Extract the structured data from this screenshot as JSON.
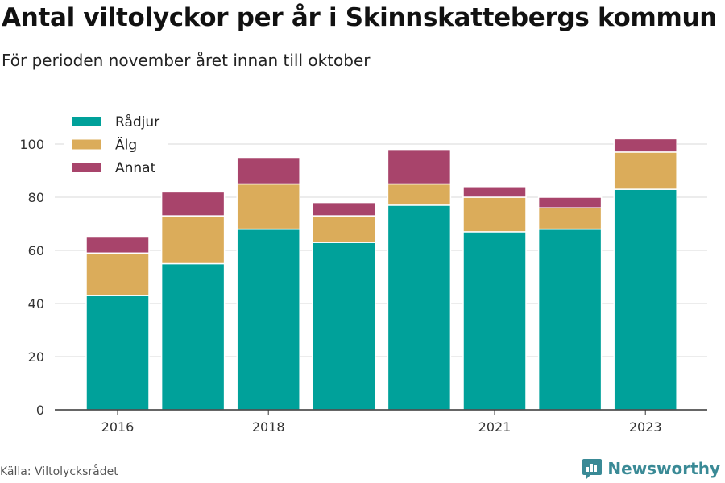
{
  "header": {
    "title": "Antal viltolyckor per år i Skinnskattebergs kommun",
    "subtitle": "För perioden november året innan till oktober"
  },
  "footer": {
    "source": "Källa: Viltolycksrådet",
    "brand": "Newsworthy",
    "brand_color": "#3a8a96"
  },
  "chart_data": {
    "type": "bar",
    "stacked": true,
    "categories": [
      "2016",
      "2017",
      "2018",
      "2019",
      "2020",
      "2021",
      "2022",
      "2023"
    ],
    "x_tick_labels": [
      "2016",
      "",
      "2018",
      "",
      "",
      "2021",
      "",
      "2023"
    ],
    "series": [
      {
        "name": "Rådjur",
        "color": "#00a19a",
        "values": [
          43,
          55,
          68,
          63,
          77,
          67,
          68,
          83
        ]
      },
      {
        "name": "Älg",
        "color": "#dbac5a",
        "values": [
          16,
          18,
          17,
          10,
          8,
          13,
          8,
          14
        ]
      },
      {
        "name": "Annat",
        "color": "#a8446b",
        "values": [
          6,
          9,
          10,
          5,
          13,
          4,
          4,
          5
        ]
      }
    ],
    "ylim": [
      0,
      110
    ],
    "yticks": [
      0,
      20,
      40,
      60,
      80,
      100
    ],
    "grid": true,
    "legend_position": "top-left"
  }
}
